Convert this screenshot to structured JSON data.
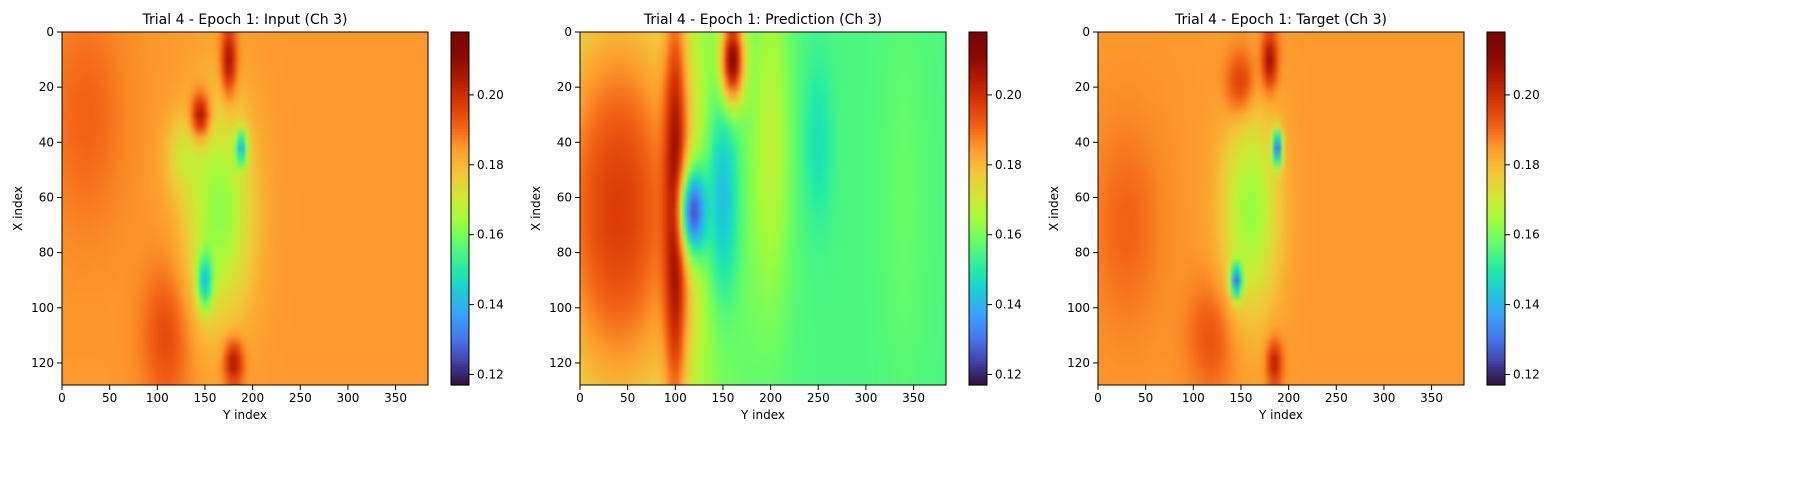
{
  "chart_data": [
    {
      "type": "heatmap",
      "title": "Trial 4 - Epoch 1: Input (Ch 3)",
      "xlabel": "Y index",
      "ylabel": "X index",
      "xlim": [
        0,
        384
      ],
      "ylim": [
        128,
        0
      ],
      "xticks": [
        0,
        50,
        100,
        150,
        200,
        250,
        300,
        350
      ],
      "yticks": [
        0,
        20,
        40,
        60,
        80,
        100,
        120
      ],
      "colorbar": {
        "range": [
          0.117,
          0.218
        ],
        "ticks": [
          0.12,
          0.14,
          0.16,
          0.18,
          0.2
        ],
        "tick_labels": [
          "0.12",
          "0.14",
          "0.16",
          "0.18",
          "0.20"
        ],
        "colormap": "turbo"
      },
      "field": {
        "background": 0.185,
        "blobs": [
          {
            "x": 25,
            "y": 30,
            "rx": 40,
            "ry": 40,
            "value": 0.191
          },
          {
            "x": 110,
            "y": 110,
            "rx": 25,
            "ry": 25,
            "value": 0.195
          },
          {
            "x": 130,
            "y": 45,
            "rx": 20,
            "ry": 14,
            "value": 0.172
          },
          {
            "x": 165,
            "y": 65,
            "rx": 35,
            "ry": 40,
            "value": 0.162
          },
          {
            "x": 150,
            "y": 90,
            "rx": 8,
            "ry": 10,
            "value": 0.141
          },
          {
            "x": 145,
            "y": 30,
            "rx": 10,
            "ry": 8,
            "value": 0.205
          },
          {
            "x": 175,
            "y": 10,
            "rx": 8,
            "ry": 12,
            "value": 0.206
          },
          {
            "x": 180,
            "y": 120,
            "rx": 10,
            "ry": 8,
            "value": 0.205
          },
          {
            "x": 188,
            "y": 42,
            "rx": 6,
            "ry": 6,
            "value": 0.138
          }
        ]
      }
    },
    {
      "type": "heatmap",
      "title": "Trial 4 - Epoch 1: Prediction (Ch 3)",
      "xlabel": "Y index",
      "ylabel": "X index",
      "xlim": [
        0,
        384
      ],
      "ylim": [
        128,
        0
      ],
      "xticks": [
        0,
        50,
        100,
        150,
        200,
        250,
        300,
        350
      ],
      "yticks": [
        0,
        20,
        40,
        60,
        80,
        100,
        120
      ],
      "colorbar": {
        "range": [
          0.117,
          0.218
        ],
        "ticks": [
          0.12,
          0.14,
          0.16,
          0.18,
          0.2
        ],
        "tick_labels": [
          "0.12",
          "0.14",
          "0.16",
          "0.18",
          "0.20"
        ],
        "colormap": "turbo"
      },
      "field": {
        "background": 0.155,
        "blobs": [
          {
            "x": 40,
            "y": 64,
            "rx": 90,
            "ry": 90,
            "value": 0.197
          },
          {
            "x": 100,
            "y": 64,
            "rx": 12,
            "ry": 70,
            "value": 0.212
          },
          {
            "x": 120,
            "y": 65,
            "rx": 15,
            "ry": 16,
            "value": 0.125
          },
          {
            "x": 150,
            "y": 60,
            "rx": 18,
            "ry": 40,
            "value": 0.142
          },
          {
            "x": 200,
            "y": 40,
            "rx": 20,
            "ry": 60,
            "value": 0.168
          },
          {
            "x": 250,
            "y": 40,
            "rx": 15,
            "ry": 30,
            "value": 0.148
          },
          {
            "x": 340,
            "y": 60,
            "rx": 25,
            "ry": 70,
            "value": 0.158
          },
          {
            "x": 160,
            "y": 10,
            "rx": 12,
            "ry": 15,
            "value": 0.212
          }
        ]
      }
    },
    {
      "type": "heatmap",
      "title": "Trial 4 - Epoch 1: Target (Ch 3)",
      "xlabel": "Y index",
      "ylabel": "X index",
      "xlim": [
        0,
        384
      ],
      "ylim": [
        128,
        0
      ],
      "xticks": [
        0,
        50,
        100,
        150,
        200,
        250,
        300,
        350
      ],
      "yticks": [
        0,
        20,
        40,
        60,
        80,
        100,
        120
      ],
      "colorbar": {
        "range": [
          0.117,
          0.218
        ],
        "ticks": [
          0.12,
          0.14,
          0.16,
          0.18,
          0.2
        ],
        "tick_labels": [
          "0.12",
          "0.14",
          "0.16",
          "0.18",
          "0.20"
        ],
        "colormap": "turbo"
      },
      "field": {
        "background": 0.185,
        "blobs": [
          {
            "x": 30,
            "y": 70,
            "rx": 35,
            "ry": 35,
            "value": 0.191
          },
          {
            "x": 120,
            "y": 110,
            "rx": 25,
            "ry": 20,
            "value": 0.194
          },
          {
            "x": 150,
            "y": 20,
            "rx": 15,
            "ry": 12,
            "value": 0.204
          },
          {
            "x": 160,
            "y": 65,
            "rx": 30,
            "ry": 38,
            "value": 0.163
          },
          {
            "x": 145,
            "y": 90,
            "rx": 6,
            "ry": 6,
            "value": 0.128
          },
          {
            "x": 180,
            "y": 10,
            "rx": 8,
            "ry": 10,
            "value": 0.207
          },
          {
            "x": 188,
            "y": 42,
            "rx": 5,
            "ry": 6,
            "value": 0.125
          },
          {
            "x": 185,
            "y": 120,
            "rx": 8,
            "ry": 8,
            "value": 0.203
          }
        ]
      }
    }
  ]
}
